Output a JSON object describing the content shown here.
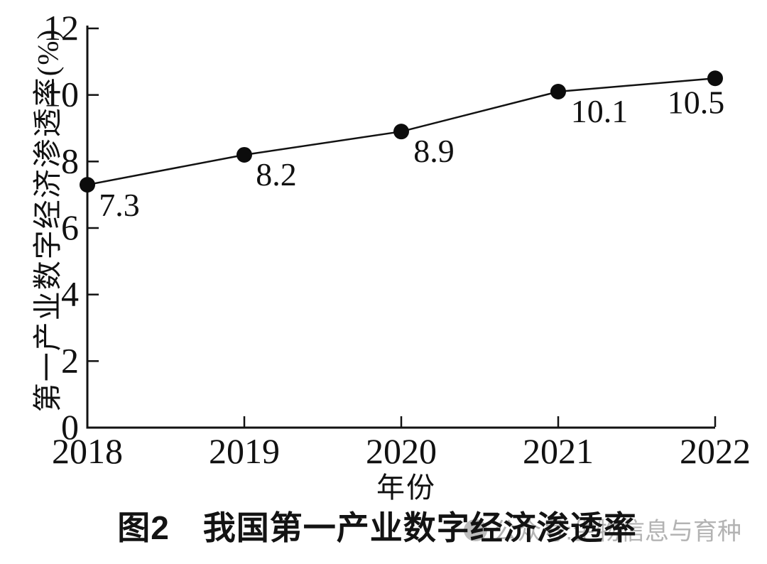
{
  "chart_data": {
    "type": "line",
    "x": [
      "2018",
      "2019",
      "2020",
      "2021",
      "2022"
    ],
    "values": [
      7.3,
      8.2,
      8.9,
      10.1,
      10.5
    ],
    "point_labels": [
      "7.3",
      "8.2",
      "8.9",
      "10.1",
      "10.5"
    ],
    "series": [
      {
        "name": "第一产业数字经济渗透率",
        "values": [
          7.3,
          8.2,
          8.9,
          10.1,
          10.5
        ]
      }
    ],
    "title": "图2　我国第一产业数字经济渗透率",
    "xlabel": "年份",
    "ylabel": "第一产业数字经济渗透率(%)",
    "ylim": [
      0,
      12
    ],
    "yticks": [
      0,
      2,
      4,
      6,
      8,
      10,
      12
    ],
    "grid": false,
    "legend": "none",
    "line_color": "#121212",
    "marker": "filled-circle",
    "marker_color": "#0c0c0c",
    "text_color": "#111111"
  },
  "watermark": {
    "text": "公众号:生物信息与育种",
    "visible_tail": "信息与育种",
    "color": "#b3b3b3",
    "logo": "circle-logo-icon"
  }
}
